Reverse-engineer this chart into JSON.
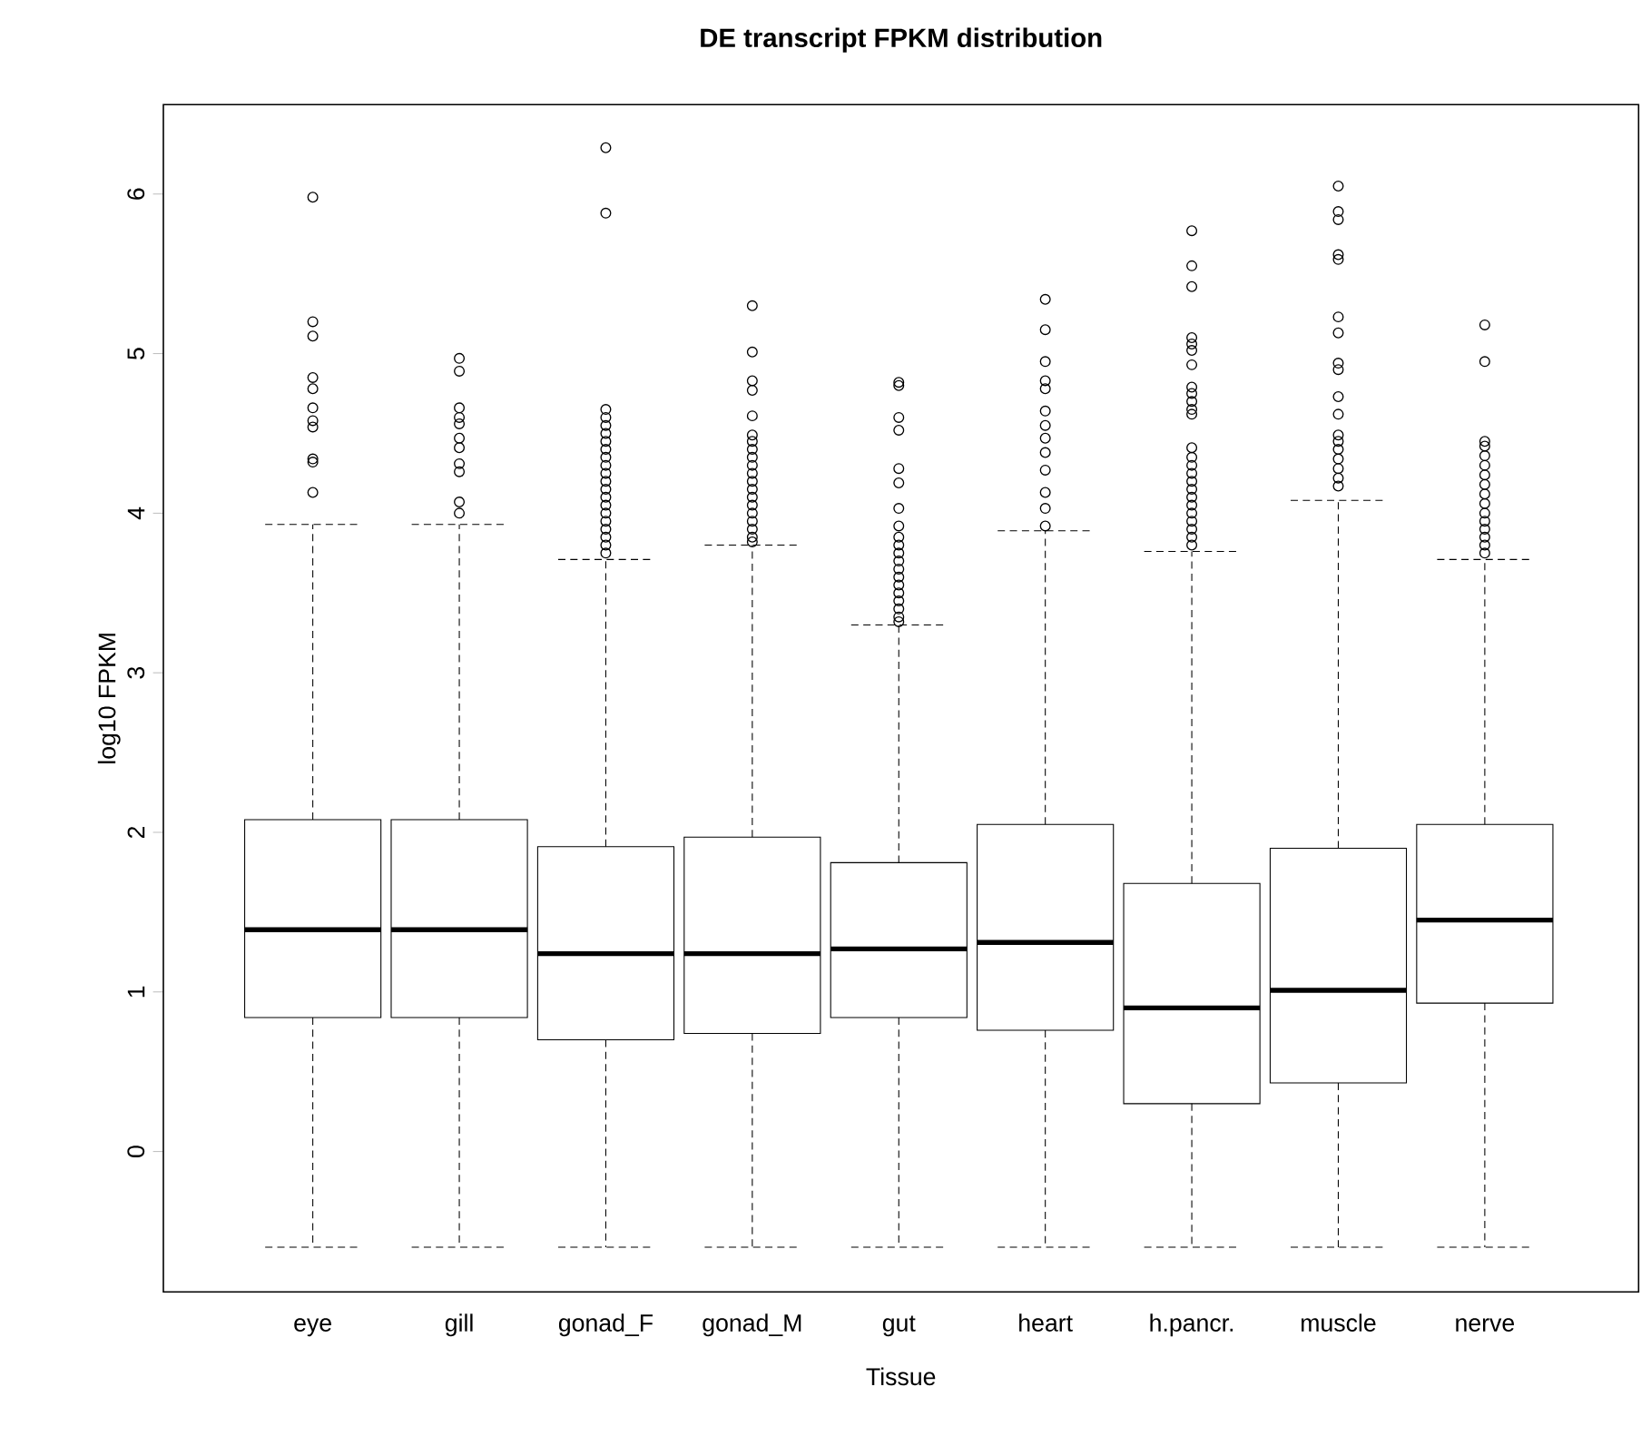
{
  "chart_data": {
    "type": "box",
    "title": "DE transcript FPKM distribution",
    "xlabel": "Tissue",
    "ylabel": "log10 FPKM",
    "categories": [
      "eye",
      "gill",
      "gonad_F",
      "gonad_M",
      "gut",
      "heart",
      "h.pancr.",
      "muscle",
      "nerve"
    ],
    "ylim": [
      -0.88,
      6.56
    ],
    "yticks": [
      0,
      1,
      2,
      3,
      4,
      5,
      6
    ],
    "marker": "circle",
    "boxes": [
      {
        "low": -0.6,
        "q1": 0.84,
        "median": 1.39,
        "q3": 2.08,
        "high": 3.93,
        "outliers": [
          5.98,
          5.2,
          5.11,
          4.85,
          4.78,
          4.66,
          4.58,
          4.54,
          4.34,
          4.32,
          4.13
        ]
      },
      {
        "low": -0.6,
        "q1": 0.84,
        "median": 1.39,
        "q3": 2.08,
        "high": 3.93,
        "outliers": [
          4.97,
          4.89,
          4.66,
          4.6,
          4.56,
          4.47,
          4.41,
          4.31,
          4.26,
          4.07,
          4.0
        ]
      },
      {
        "low": -0.6,
        "q1": 0.7,
        "median": 1.24,
        "q3": 1.91,
        "high": 3.71,
        "outliers": [
          6.29,
          5.88,
          4.65,
          4.6,
          4.55,
          4.5,
          4.45,
          4.4,
          4.35,
          4.3,
          4.25,
          4.2,
          4.15,
          4.1,
          4.05,
          4.0,
          3.95,
          3.9,
          3.85,
          3.8,
          3.75
        ]
      },
      {
        "low": -0.6,
        "q1": 0.74,
        "median": 1.24,
        "q3": 1.97,
        "high": 3.8,
        "outliers": [
          5.3,
          5.01,
          4.83,
          4.77,
          4.61,
          4.49,
          4.45,
          4.4,
          4.35,
          4.3,
          4.25,
          4.2,
          4.15,
          4.1,
          4.05,
          4.0,
          3.95,
          3.9,
          3.85,
          3.82
        ]
      },
      {
        "low": -0.6,
        "q1": 0.84,
        "median": 1.27,
        "q3": 1.81,
        "high": 3.3,
        "outliers": [
          4.82,
          4.8,
          4.6,
          4.52,
          4.28,
          4.19,
          4.03,
          3.92,
          3.85,
          3.8,
          3.75,
          3.7,
          3.65,
          3.6,
          3.55,
          3.5,
          3.45,
          3.4,
          3.35,
          3.32
        ]
      },
      {
        "low": -0.6,
        "q1": 0.76,
        "median": 1.31,
        "q3": 2.05,
        "high": 3.89,
        "outliers": [
          5.34,
          5.15,
          4.95,
          4.83,
          4.78,
          4.64,
          4.55,
          4.47,
          4.38,
          4.27,
          4.13,
          4.03,
          3.92
        ]
      },
      {
        "low": -0.6,
        "q1": 0.3,
        "median": 0.9,
        "q3": 1.68,
        "high": 3.76,
        "outliers": [
          5.77,
          5.55,
          5.42,
          5.1,
          5.06,
          5.02,
          4.93,
          4.79,
          4.75,
          4.7,
          4.65,
          4.62,
          4.41,
          4.35,
          4.3,
          4.25,
          4.2,
          4.15,
          4.1,
          4.05,
          4.0,
          3.95,
          3.9,
          3.85,
          3.8
        ]
      },
      {
        "low": -0.6,
        "q1": 0.43,
        "median": 1.01,
        "q3": 1.9,
        "high": 4.08,
        "outliers": [
          6.05,
          5.89,
          5.84,
          5.62,
          5.59,
          5.23,
          5.13,
          4.94,
          4.9,
          4.73,
          4.62,
          4.49,
          4.45,
          4.4,
          4.34,
          4.28,
          4.22,
          4.17
        ]
      },
      {
        "low": -0.6,
        "q1": 0.93,
        "median": 1.45,
        "q3": 2.05,
        "high": 3.71,
        "outliers": [
          5.18,
          4.95,
          4.45,
          4.42,
          4.36,
          4.3,
          4.24,
          4.18,
          4.12,
          4.06,
          4.0,
          3.95,
          3.9,
          3.85,
          3.8,
          3.75
        ]
      }
    ]
  }
}
